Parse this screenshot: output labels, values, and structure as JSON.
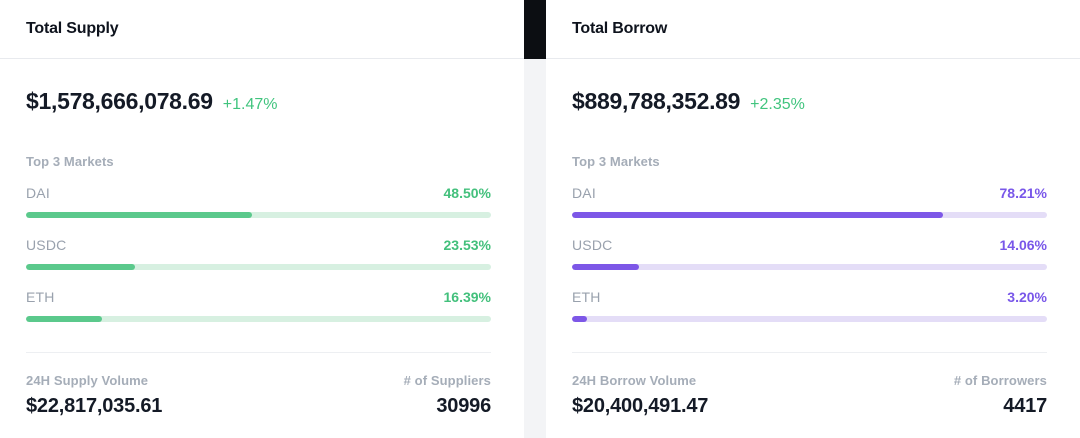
{
  "colors": {
    "supply_accent_text": "#43c07c",
    "supply_bar_fill": "#5bc98c",
    "supply_bar_track": "#d7f0e1",
    "borrow_accent_text": "#7957e9",
    "borrow_bar_fill": "#7d57e7",
    "borrow_bar_track": "#e4ddf7",
    "change_positive": "#41c47e",
    "label_gray": "#a5adb8",
    "value_dark": "#141a26",
    "divider_black_bar": "#0c0e12"
  },
  "panels": [
    {
      "title": "Total Supply",
      "total_value": "$1,578,666,078.69",
      "change": "+1.47%",
      "markets_label": "Top 3 Markets",
      "markets": [
        {
          "name": "DAI",
          "percent_label": "48.50%",
          "percent": 48.5
        },
        {
          "name": "USDC",
          "percent_label": "23.53%",
          "percent": 23.53
        },
        {
          "name": "ETH",
          "percent_label": "16.39%",
          "percent": 16.39
        }
      ],
      "volume_label": "24H Supply Volume",
      "volume_value": "$22,817,035.61",
      "count_label": "# of Suppliers",
      "count_value": "30996"
    },
    {
      "title": "Total Borrow",
      "total_value": "$889,788,352.89",
      "change": "+2.35%",
      "markets_label": "Top 3 Markets",
      "markets": [
        {
          "name": "DAI",
          "percent_label": "78.21%",
          "percent": 78.21
        },
        {
          "name": "USDC",
          "percent_label": "14.06%",
          "percent": 14.06
        },
        {
          "name": "ETH",
          "percent_label": "3.20%",
          "percent": 3.2
        }
      ],
      "volume_label": "24H Borrow Volume",
      "volume_value": "$20,400,491.47",
      "count_label": "# of Borrowers",
      "count_value": "4417"
    }
  ],
  "chart_data": [
    {
      "type": "bar",
      "title": "Total Supply — Top 3 Markets",
      "categories": [
        "DAI",
        "USDC",
        "ETH"
      ],
      "values": [
        48.5,
        23.53,
        16.39
      ],
      "unit": "%",
      "xlim": [
        0,
        100
      ]
    },
    {
      "type": "bar",
      "title": "Total Borrow — Top 3 Markets",
      "categories": [
        "DAI",
        "USDC",
        "ETH"
      ],
      "values": [
        78.21,
        14.06,
        3.2
      ],
      "unit": "%",
      "xlim": [
        0,
        100
      ]
    }
  ]
}
